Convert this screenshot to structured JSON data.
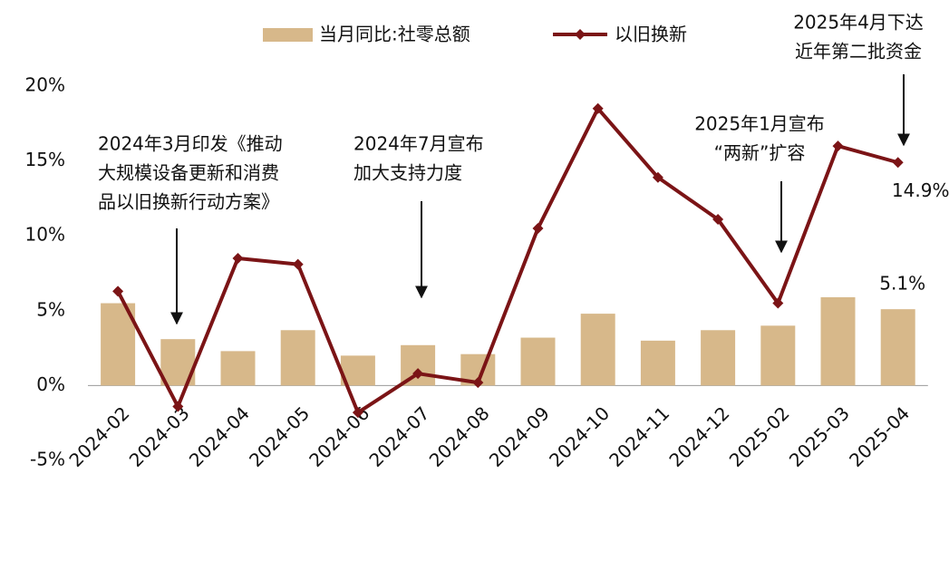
{
  "chart_data": {
    "type": "bar_line",
    "categories": [
      "2024-02",
      "2024-03",
      "2024-04",
      "2024-05",
      "2024-06",
      "2024-07",
      "2024-08",
      "2024-09",
      "2024-10",
      "2024-11",
      "2024-12",
      "2025-02",
      "2025-03",
      "2025-04"
    ],
    "series": [
      {
        "name": "当月同比:社零总额",
        "type": "bar",
        "color": "#d7b88a",
        "values": [
          5.5,
          3.1,
          2.3,
          3.7,
          2.0,
          2.7,
          2.1,
          3.2,
          4.8,
          3.0,
          3.7,
          4.0,
          5.9,
          5.1
        ],
        "value_labels": [
          null,
          null,
          null,
          null,
          null,
          null,
          null,
          null,
          null,
          null,
          null,
          null,
          null,
          "5.1%"
        ]
      },
      {
        "name": "以旧换新",
        "type": "line",
        "color": "#7b1416",
        "values": [
          6.3,
          -1.4,
          8.5,
          8.1,
          -1.8,
          0.8,
          0.2,
          10.5,
          18.5,
          13.9,
          11.1,
          5.5,
          16.0,
          14.9
        ],
        "value_labels": [
          null,
          null,
          null,
          null,
          null,
          null,
          null,
          null,
          null,
          null,
          null,
          null,
          null,
          "14.9%"
        ]
      }
    ],
    "ylim": [
      -5,
      20
    ],
    "yticks": [
      {
        "value": -5,
        "label": "-5%"
      },
      {
        "value": 0,
        "label": "0%"
      },
      {
        "value": 5,
        "label": "5%"
      },
      {
        "value": 10,
        "label": "10%"
      },
      {
        "value": 15,
        "label": "15%"
      },
      {
        "value": 20,
        "label": "20%"
      }
    ],
    "annotations": [
      {
        "lines": [
          "2024年3月印发《推动",
          "大规模设备更新和消费",
          "品以旧换新行动方案》"
        ]
      },
      {
        "lines": [
          "2024年7月宣布",
          "加大支持力度"
        ]
      },
      {
        "lines": [
          "2025年1月宣布",
          "“两新”扩容"
        ]
      },
      {
        "lines": [
          "2025年4月下达",
          "近年第二批资金"
        ]
      }
    ],
    "legend": "top"
  }
}
